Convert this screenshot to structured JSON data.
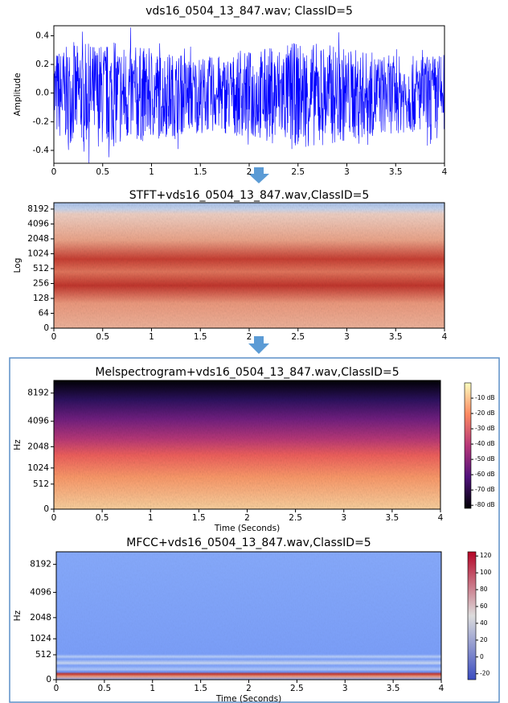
{
  "chart_data": [
    {
      "type": "waveform",
      "title": "vds16_0504_13_847.wav; ClassID=5",
      "ylabel": "Amplitude",
      "color": "#0000ff",
      "xlim": [
        0,
        4
      ],
      "xticks": [
        0,
        0.5,
        1,
        1.5,
        2,
        2.5,
        3,
        3.5,
        4
      ],
      "ylim": [
        -0.49,
        0.47
      ],
      "yticks": [
        -0.4,
        -0.2,
        {
          "value": 0,
          "label": "0.0"
        },
        0.2,
        0.4
      ]
    },
    {
      "type": "stft",
      "title": "STFT+vds16_0504_13_847.wav,ClassID=5",
      "ylabel": "Log",
      "yscale": "symlog",
      "xlim": [
        0,
        4
      ],
      "xticks": [
        0,
        0.5,
        1,
        1.5,
        2,
        2.5,
        3,
        3.5,
        4
      ],
      "ylim": [
        0,
        11025
      ],
      "yticks": [
        0,
        64,
        128,
        256,
        512,
        1024,
        2048,
        4096,
        8192
      ]
    },
    {
      "type": "melspectrogram",
      "title": "Melspectrogram+vds16_0504_13_847.wav,ClassID=5",
      "xlabel": "Time (Seconds)",
      "ylabel": "Hz",
      "yscale": "mel",
      "xlim": [
        0,
        4
      ],
      "xticks": [
        0,
        0.5,
        1,
        1.5,
        2,
        2.5,
        3,
        3.5,
        4
      ],
      "ylim": [
        0,
        11025
      ],
      "yticks": [
        0,
        512,
        1024,
        2048,
        4096,
        8192
      ],
      "clim": [
        -82,
        0
      ],
      "cticks": [
        {
          "value": -10,
          "label": "-10 dB"
        },
        {
          "value": -20,
          "label": "-20 dB"
        },
        {
          "value": -30,
          "label": "-30 dB"
        },
        {
          "value": -40,
          "label": "-40 dB"
        },
        {
          "value": -50,
          "label": "-50 dB"
        },
        {
          "value": -60,
          "label": "-60 dB"
        },
        {
          "value": -70,
          "label": "-70 dB"
        },
        {
          "value": -80,
          "label": "-80 dB"
        }
      ]
    },
    {
      "type": "mfcc",
      "title": "MFCC+vds16_0504_13_847.wav,ClassID=5",
      "xlabel": "Time (Seconds)",
      "ylabel": "Hz",
      "yscale": "mel",
      "xlim": [
        0,
        4
      ],
      "xticks": [
        0,
        0.5,
        1,
        1.5,
        2,
        2.5,
        3,
        3.5,
        4
      ],
      "ylim": [
        0,
        11025
      ],
      "yticks": [
        0,
        512,
        1024,
        2048,
        4096,
        8192
      ],
      "clim": [
        -27,
        125
      ],
      "cticks": [
        120,
        100,
        80,
        60,
        40,
        20,
        0,
        -20
      ]
    }
  ]
}
